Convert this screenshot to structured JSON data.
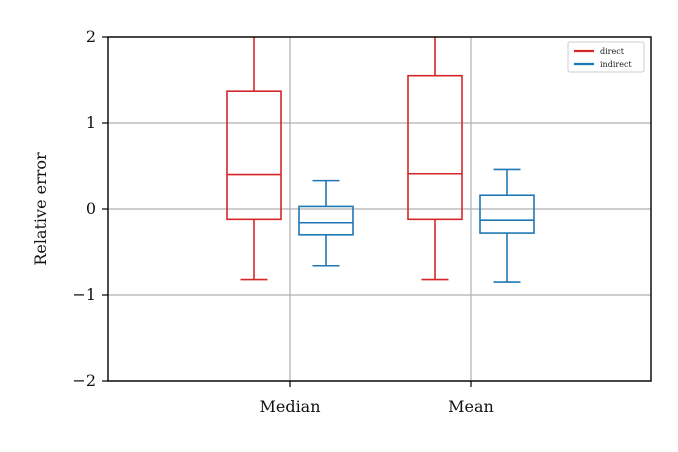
{
  "chart_data": {
    "type": "box",
    "categories": [
      "Median",
      "Mean"
    ],
    "ylabel": "Relative error",
    "ylim": [
      -2,
      2
    ],
    "yticks": [
      -2,
      -1,
      0,
      1,
      2
    ],
    "ytick_labels": [
      "−2",
      "−1",
      "0",
      "1",
      "2"
    ],
    "grid": true,
    "legend_position": "top-right",
    "series": [
      {
        "name": "direct",
        "color": "#d62728",
        "boxes": [
          {
            "whisker_low": -0.82,
            "q1": -0.12,
            "median": 0.4,
            "q3": 1.37,
            "whisker_high": 2.0
          },
          {
            "whisker_low": -0.82,
            "q1": -0.12,
            "median": 0.41,
            "q3": 1.55,
            "whisker_high": 2.0
          }
        ]
      },
      {
        "name": "indirect",
        "color": "#1f77b4",
        "boxes": [
          {
            "whisker_low": -0.66,
            "q1": -0.3,
            "median": -0.16,
            "q3": 0.03,
            "whisker_high": 0.33
          },
          {
            "whisker_low": -0.85,
            "q1": -0.28,
            "median": -0.13,
            "q3": 0.16,
            "whisker_high": 0.46
          }
        ]
      }
    ]
  }
}
